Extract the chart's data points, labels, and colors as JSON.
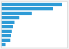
{
  "values": [
    100,
    85,
    50,
    30,
    22,
    19,
    17,
    16,
    15,
    7
  ],
  "bar_color": "#2E9BD6",
  "background_color": "#f2f2f2",
  "plot_bg_color": "#ffffff",
  "grid_color": "#ffffff",
  "figsize": [
    1.0,
    0.71
  ],
  "dpi": 100,
  "bar_height": 0.75
}
